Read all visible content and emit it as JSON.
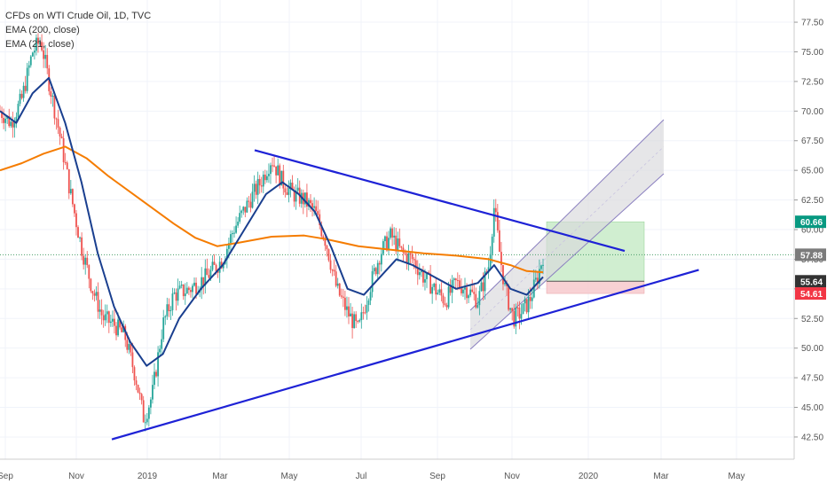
{
  "header": {
    "title": "CFDs on WTI Crude Oil, 1D, TVC",
    "ema1": "EMA (200, close)",
    "ema2": "EMA (21, close)"
  },
  "chart_data": {
    "type": "candlestick",
    "symbol": "CFDs on WTI Crude Oil",
    "timeframe": "1D",
    "source": "TVC",
    "x_axis": {
      "ticks": [
        "Sep",
        "Nov",
        "2019",
        "Mar",
        "May",
        "Jul",
        "Sep",
        "Nov",
        "2020",
        "Mar",
        "May"
      ]
    },
    "y_axis": {
      "ylim": [
        41,
        79
      ],
      "ticks": [
        "77.50",
        "75.00",
        "72.50",
        "70.00",
        "67.50",
        "65.00",
        "62.50",
        "60.00",
        "57.50",
        "55.00",
        "52.50",
        "50.00",
        "47.50",
        "45.00",
        "42.50"
      ]
    },
    "price_labels": [
      {
        "value": "60.66",
        "color": "#089981",
        "role": "target"
      },
      {
        "value": "57.88",
        "color": "#7b7b7b",
        "role": "last-price"
      },
      {
        "value": "55.64",
        "color": "#333333",
        "role": "entry"
      },
      {
        "value": "54.61",
        "color": "#f23645",
        "role": "stop"
      }
    ],
    "colors": {
      "up_candle": "#26a69a",
      "down_candle": "#ef5350",
      "ema200": "#f57c00",
      "ema21": "#1a3f8f",
      "trendline": "#1e22d6",
      "channel_fill": "#d8d8dc",
      "profit_zone": "#c8ebc8",
      "loss_zone": "#f7c9cc",
      "last_price_line": "#4a9f6a"
    },
    "price_path": [
      [
        0,
        70.0
      ],
      [
        0.02,
        69.0
      ],
      [
        0.04,
        71.0
      ],
      [
        0.06,
        75.0
      ],
      [
        0.075,
        76.0
      ],
      [
        0.09,
        72.5
      ],
      [
        0.11,
        68.0
      ],
      [
        0.13,
        63.0
      ],
      [
        0.15,
        58.5
      ],
      [
        0.17,
        55.0
      ],
      [
        0.19,
        52.5
      ],
      [
        0.21,
        52.0
      ],
      [
        0.23,
        51.0
      ],
      [
        0.25,
        47.5
      ],
      [
        0.265,
        44.0
      ],
      [
        0.28,
        46.0
      ],
      [
        0.3,
        52.0
      ],
      [
        0.32,
        54.5
      ],
      [
        0.35,
        55.0
      ],
      [
        0.38,
        56.0
      ],
      [
        0.41,
        57.5
      ],
      [
        0.43,
        60.0
      ],
      [
        0.46,
        62.5
      ],
      [
        0.48,
        64.0
      ],
      [
        0.5,
        66.0
      ],
      [
        0.52,
        64.0
      ],
      [
        0.54,
        63.0
      ],
      [
        0.56,
        62.5
      ],
      [
        0.58,
        61.5
      ],
      [
        0.6,
        59.0
      ],
      [
        0.62,
        55.0
      ],
      [
        0.64,
        53.0
      ],
      [
        0.66,
        51.5
      ],
      [
        0.68,
        55.0
      ],
      [
        0.7,
        58.0
      ],
      [
        0.72,
        59.5
      ],
      [
        0.74,
        58.0
      ],
      [
        0.76,
        57.5
      ],
      [
        0.78,
        56.0
      ],
      [
        0.8,
        55.0
      ],
      [
        0.82,
        54.0
      ],
      [
        0.84,
        55.5
      ],
      [
        0.86,
        55.0
      ],
      [
        0.88,
        54.0
      ],
      [
        0.9,
        57.0
      ],
      [
        0.91,
        62.0
      ],
      [
        0.92,
        58.0
      ],
      [
        0.93,
        55.0
      ],
      [
        0.945,
        52.5
      ],
      [
        0.96,
        53.0
      ],
      [
        0.975,
        54.0
      ],
      [
        0.99,
        56.0
      ],
      [
        1.0,
        57.8
      ]
    ],
    "ema200_path": [
      [
        0,
        65.0
      ],
      [
        0.04,
        65.6
      ],
      [
        0.08,
        66.4
      ],
      [
        0.12,
        67.0
      ],
      [
        0.16,
        66.0
      ],
      [
        0.2,
        64.5
      ],
      [
        0.26,
        62.5
      ],
      [
        0.32,
        60.5
      ],
      [
        0.36,
        59.3
      ],
      [
        0.4,
        58.6
      ],
      [
        0.44,
        58.9
      ],
      [
        0.5,
        59.4
      ],
      [
        0.56,
        59.5
      ],
      [
        0.6,
        59.2
      ],
      [
        0.66,
        58.6
      ],
      [
        0.72,
        58.3
      ],
      [
        0.78,
        58.0
      ],
      [
        0.84,
        57.8
      ],
      [
        0.9,
        57.5
      ],
      [
        0.94,
        57.0
      ],
      [
        0.97,
        56.5
      ],
      [
        1.0,
        56.4
      ]
    ],
    "ema21_path": [
      [
        0,
        70.0
      ],
      [
        0.03,
        69.0
      ],
      [
        0.06,
        71.5
      ],
      [
        0.09,
        72.8
      ],
      [
        0.12,
        69.0
      ],
      [
        0.15,
        64.0
      ],
      [
        0.18,
        58.0
      ],
      [
        0.21,
        53.5
      ],
      [
        0.24,
        50.5
      ],
      [
        0.27,
        48.5
      ],
      [
        0.3,
        49.5
      ],
      [
        0.33,
        52.5
      ],
      [
        0.37,
        55.0
      ],
      [
        0.41,
        57.0
      ],
      [
        0.45,
        60.0
      ],
      [
        0.49,
        63.0
      ],
      [
        0.52,
        64.0
      ],
      [
        0.55,
        63.0
      ],
      [
        0.58,
        61.5
      ],
      [
        0.61,
        58.5
      ],
      [
        0.64,
        55.0
      ],
      [
        0.67,
        54.5
      ],
      [
        0.7,
        56.0
      ],
      [
        0.73,
        57.5
      ],
      [
        0.76,
        57.0
      ],
      [
        0.8,
        56.0
      ],
      [
        0.84,
        55.0
      ],
      [
        0.88,
        55.5
      ],
      [
        0.91,
        57.0
      ],
      [
        0.94,
        55.0
      ],
      [
        0.97,
        54.5
      ],
      [
        1.0,
        56.0
      ]
    ],
    "lines": [
      {
        "name": "upper-trendline",
        "from": [
          "Apr 2019",
          66.7
        ],
        "to": [
          "Feb 2020",
          58.2
        ]
      },
      {
        "name": "lower-trendline",
        "from": [
          "Dec 2018",
          42.3
        ],
        "to": [
          "Apr 2020",
          56.6
        ]
      }
    ],
    "grid": true
  }
}
